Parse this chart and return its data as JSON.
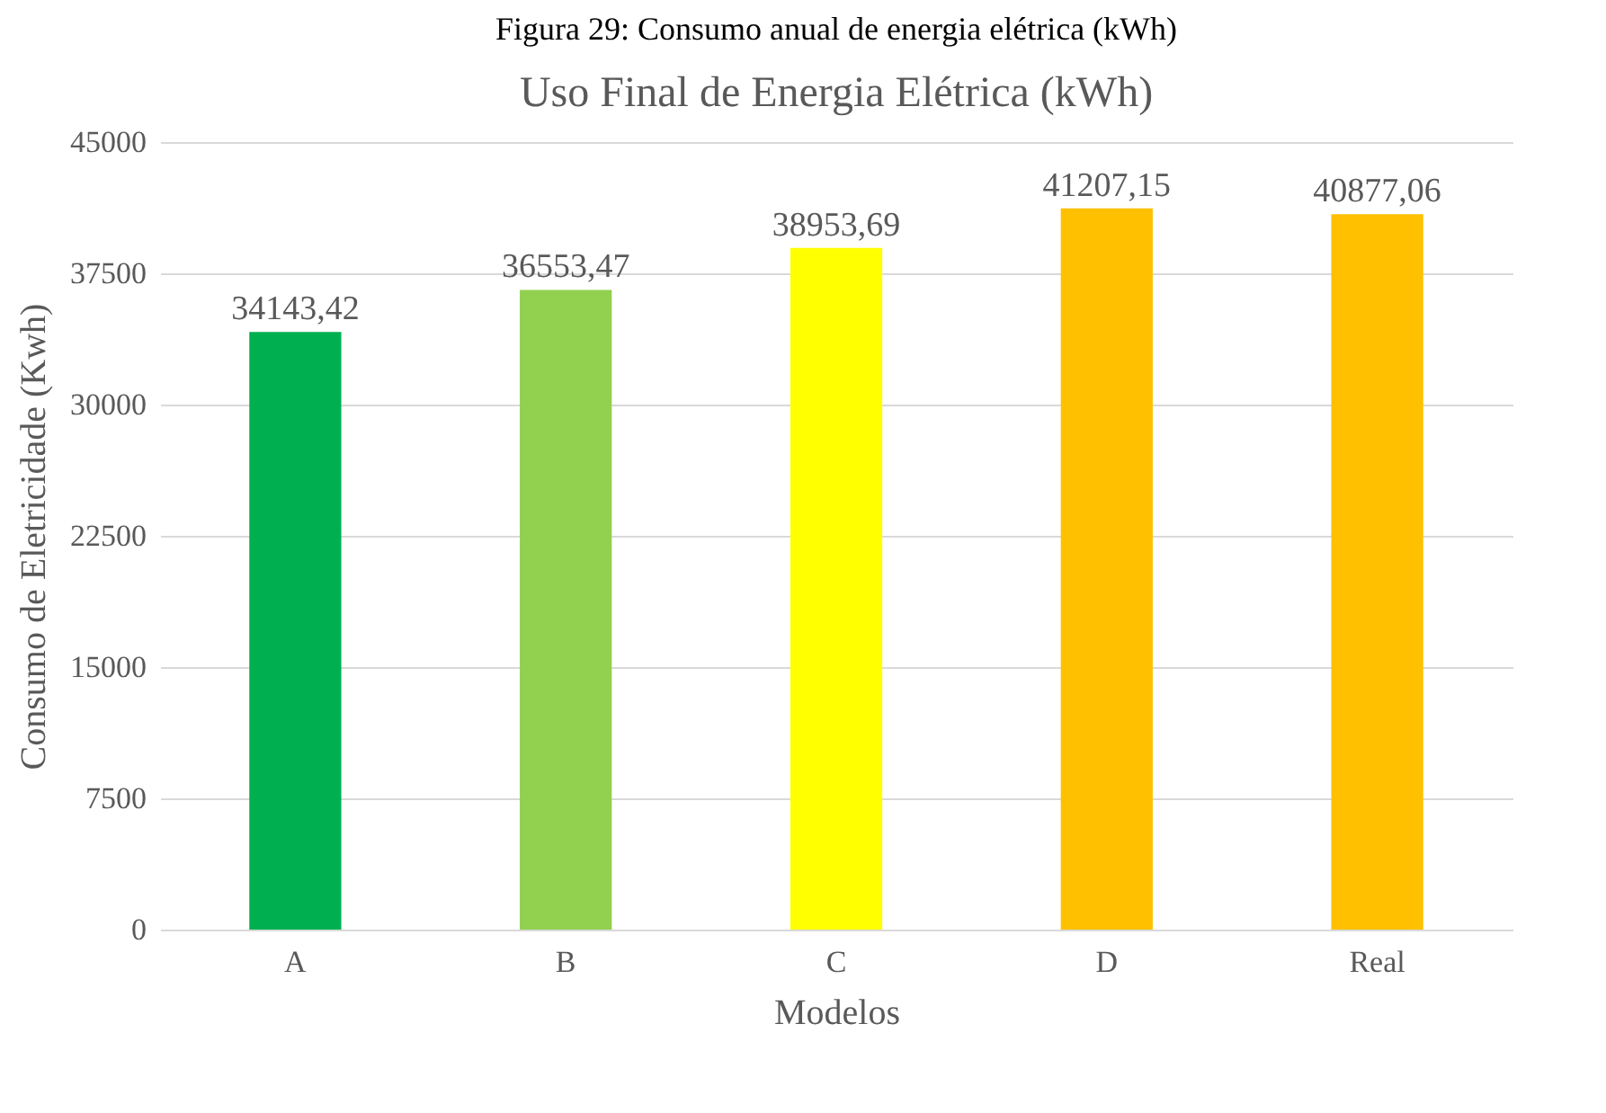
{
  "chart_data": {
    "type": "bar",
    "title": "Figura 29: Consumo anual de energia elétrica (kWh)",
    "subtitle": "Uso Final de Energia Elétrica (kWh)",
    "xlabel": "Modelos",
    "ylabel": "Consumo de Eletricidade (Kwh)",
    "categories": [
      "A",
      "B",
      "C",
      "D",
      "Real"
    ],
    "values": [
      34143.42,
      36553.47,
      38953.69,
      41207.15,
      40877.06
    ],
    "colors": [
      "#00b050",
      "#92d050",
      "#ffff00",
      "#ffc000",
      "#ffc000"
    ],
    "value_labels": [
      "34143,42",
      "36553,47",
      "38953,69",
      "41207,15",
      "40877,06"
    ],
    "ylim": [
      0,
      45000
    ],
    "yticks": [
      0,
      7500,
      15000,
      22500,
      30000,
      37500,
      45000
    ],
    "grid": "y"
  }
}
